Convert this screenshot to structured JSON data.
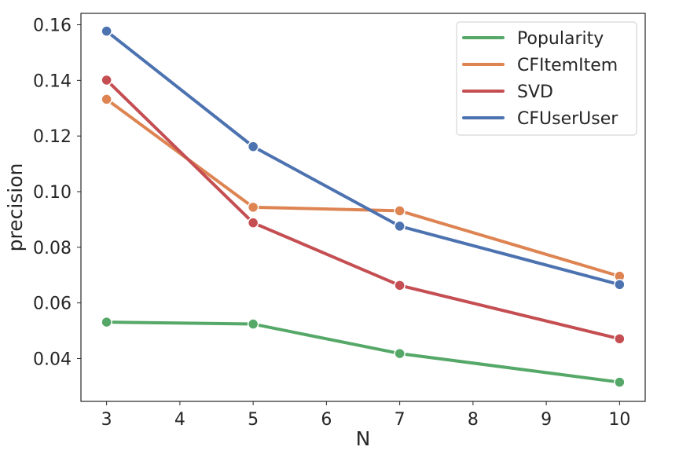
{
  "chart_data": {
    "type": "line",
    "xlabel": "N",
    "ylabel": "precision",
    "x": [
      3,
      5,
      7,
      10
    ],
    "xticks": [
      "3",
      "4",
      "5",
      "6",
      "7",
      "8",
      "9",
      "10"
    ],
    "yticks": [
      "0.04",
      "0.06",
      "0.08",
      "0.10",
      "0.12",
      "0.14",
      "0.16"
    ],
    "xlim": [
      2.65,
      10.35
    ],
    "ylim": [
      0.0246,
      0.1641
    ],
    "grid": false,
    "legend_position": "top-right",
    "series": [
      {
        "name": "Popularity",
        "color": "#55a868",
        "values": [
          0.0531,
          0.0524,
          0.0418,
          0.0315
        ]
      },
      {
        "name": "CFItemItem",
        "color": "#dd8452",
        "values": [
          0.1332,
          0.0944,
          0.0931,
          0.0696
        ]
      },
      {
        "name": "SVD",
        "color": "#c44e52",
        "values": [
          0.1401,
          0.0888,
          0.0663,
          0.0471
        ]
      },
      {
        "name": "CFUserUser",
        "color": "#4c72b0",
        "values": [
          0.1577,
          0.1162,
          0.0876,
          0.0666
        ]
      }
    ]
  }
}
